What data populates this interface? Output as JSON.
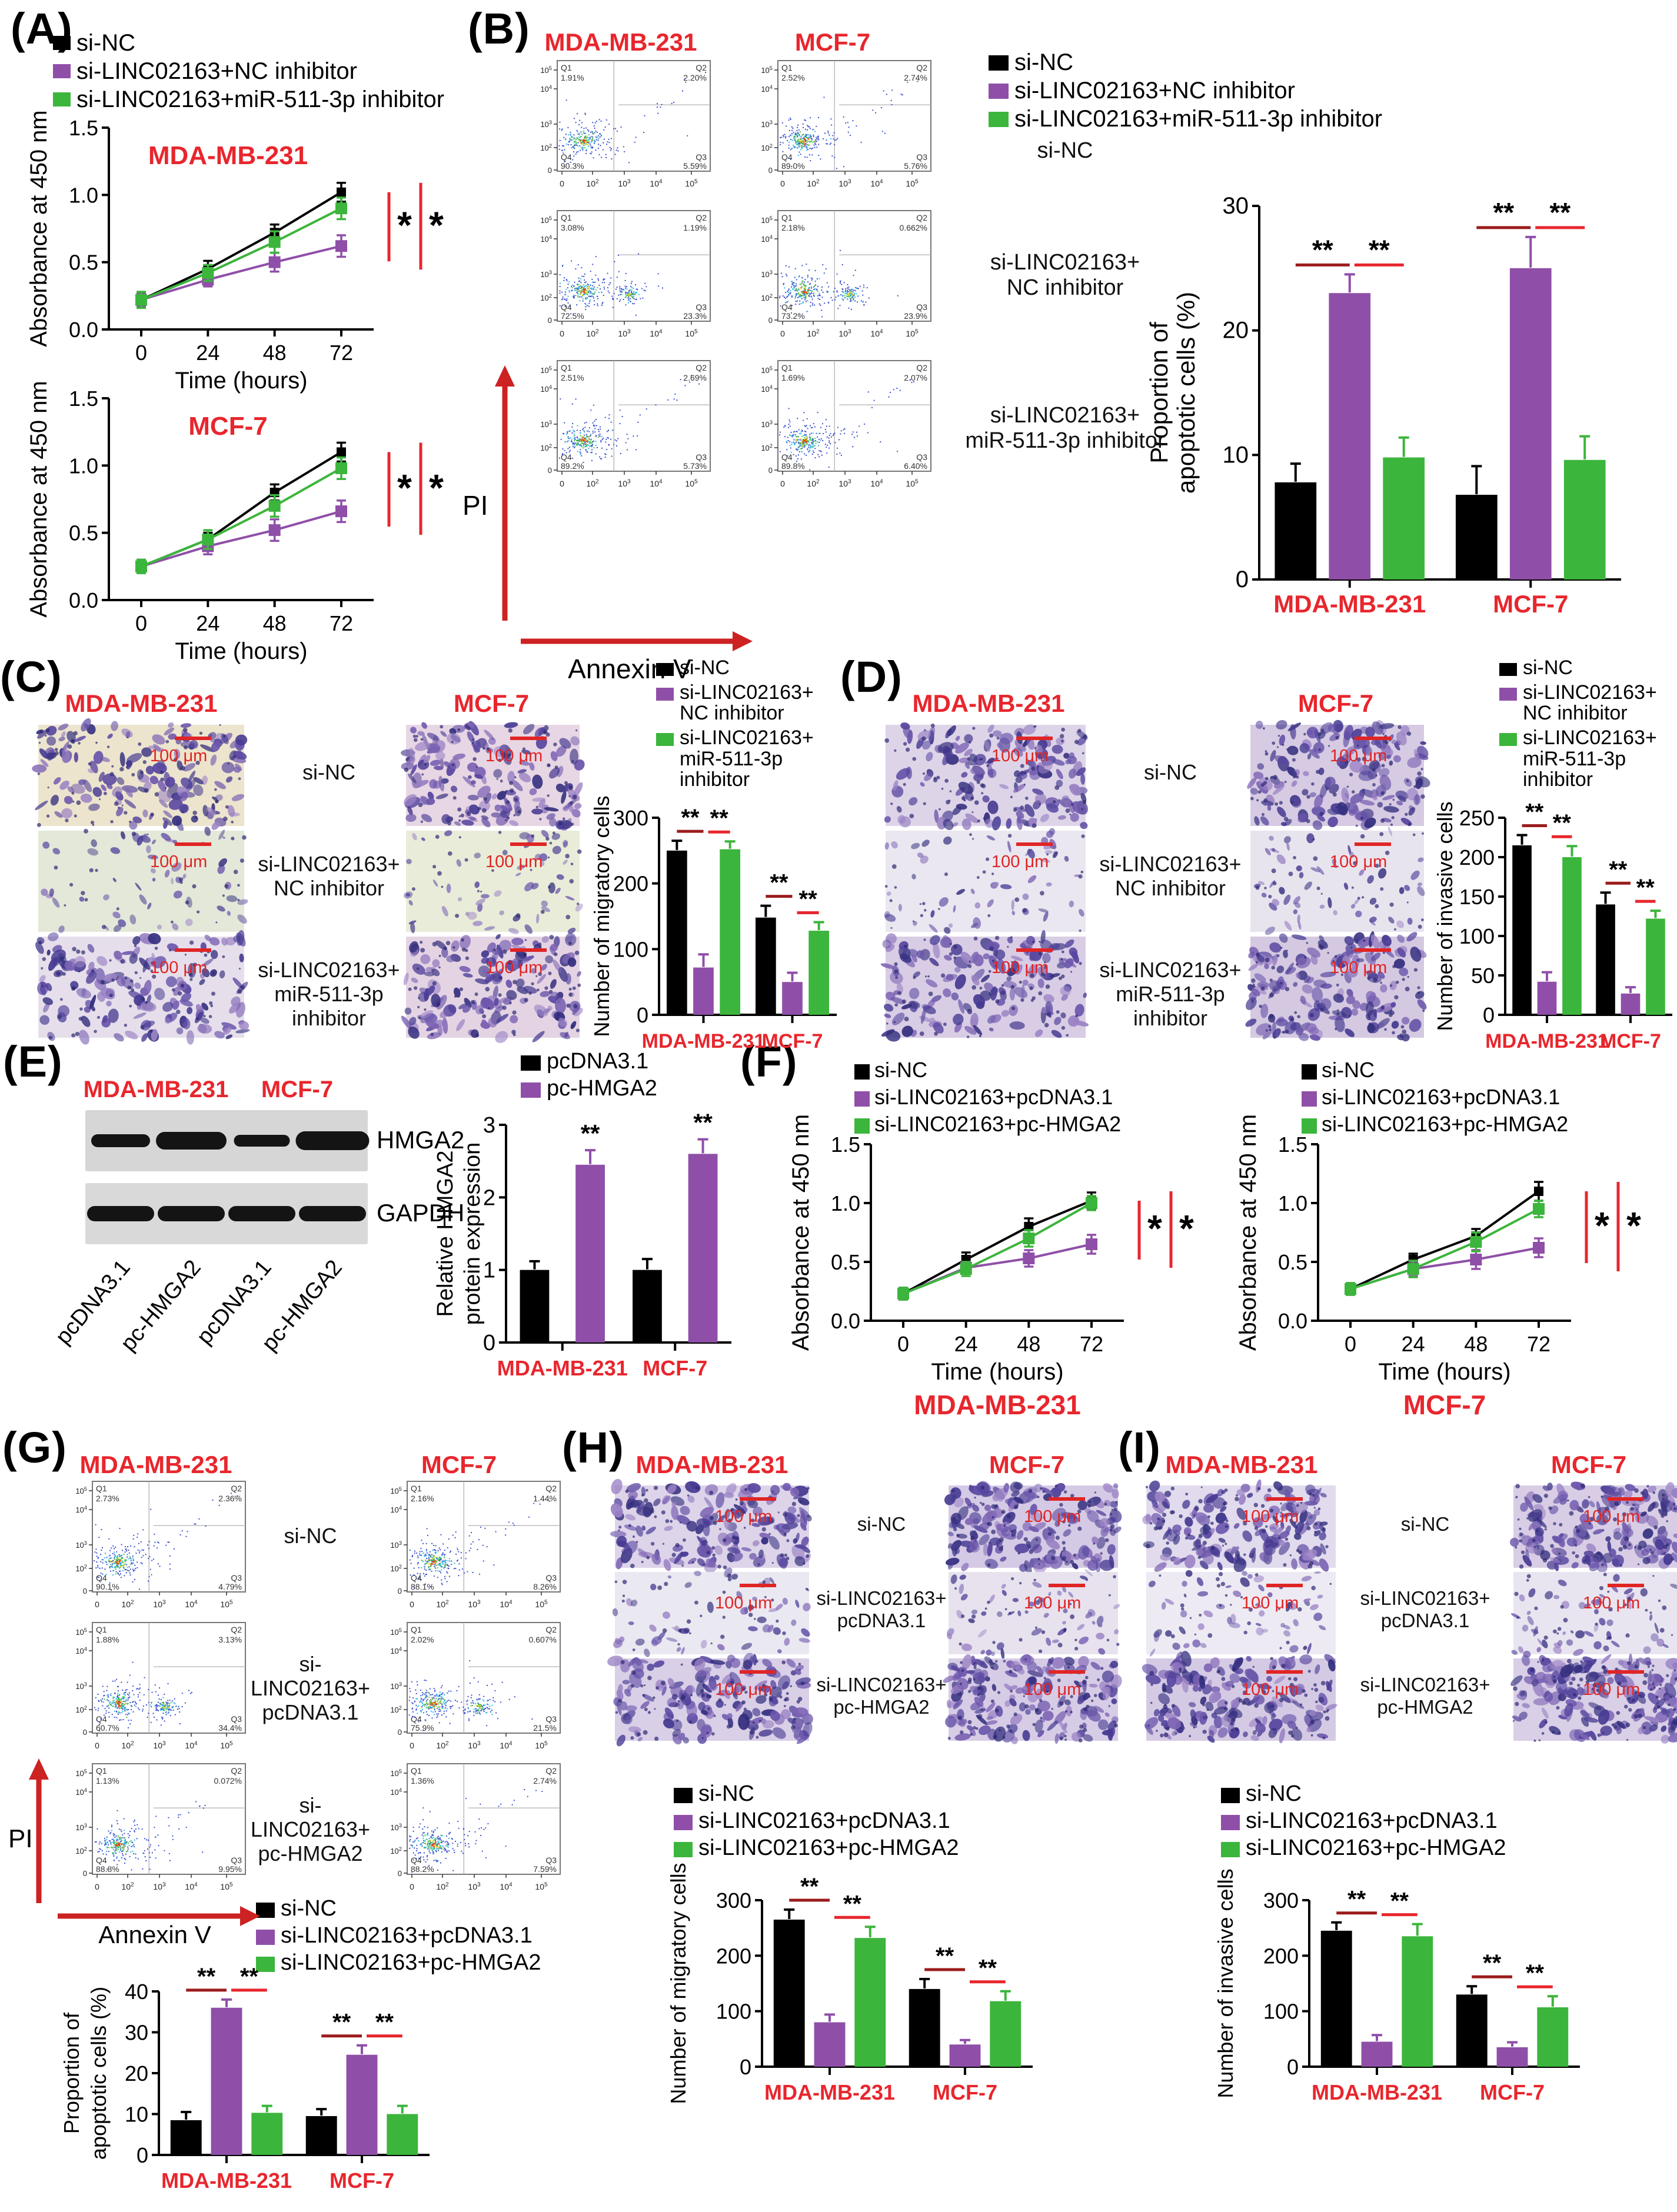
{
  "figure": {
    "panels": {
      "a": "(A)",
      "b": "(B)",
      "c": "(C)",
      "d": "(D)",
      "e": "(E)",
      "f": "(F)",
      "g": "(G)",
      "h": "(H)",
      "i": "(I)"
    }
  },
  "colors": {
    "black": "#000000",
    "purple": "#8f4fa8",
    "green": "#3cb53c",
    "red": "#e8262d",
    "dark_red": "#9b1c1c",
    "arrow_red": "#cc2222",
    "scale_red": "#e02525"
  },
  "cell_lines": [
    "MDA-MB-231",
    "MCF-7"
  ],
  "groups": {
    "inhibitor": {
      "full": [
        "si-NC",
        "si-LINC02163+NC inhibitor",
        "si-LINC02163+miR-511-3p inhibitor"
      ],
      "wrapped": [
        [
          "si-NC"
        ],
        [
          "si-LINC02163+",
          "NC inhibitor"
        ],
        [
          "si-LINC02163+",
          "miR-511-3p inhibitor"
        ]
      ]
    },
    "hmga2": {
      "full": [
        "pcDNA3.1",
        "pc-HMGA2"
      ]
    },
    "pchmga2": {
      "full": [
        "si-NC",
        "si-LINC02163+pcDNA3.1",
        "si-LINC02163+pc-HMGA2"
      ],
      "wrapped": [
        [
          "si-NC"
        ],
        [
          "si-LINC02163+",
          "pcDNA3.1"
        ],
        [
          "si-LINC02163+",
          "pc-HMGA2"
        ]
      ]
    }
  },
  "axis_labels": {
    "absorbance": "Absorbance at 450 nm",
    "time": "Time (hours)",
    "pi": "PI",
    "annexin": "Annexin V",
    "apoptotic": [
      "Proportion of",
      "apoptotic cells (%)"
    ],
    "migratory": "Number of migratory cells",
    "invasive": "Number of invasive cells",
    "hmga2": [
      "Relative HMGA2",
      "protein expression"
    ]
  },
  "scale_bar_label": "100 μm",
  "significance": {
    "double": "**",
    "single": "*"
  },
  "flow_axis": {
    "ticks": [
      "0",
      "10²",
      "10³",
      "10⁴",
      "10⁵"
    ],
    "quadrants": [
      "Q1",
      "Q2",
      "Q3",
      "Q4"
    ]
  },
  "blot": {
    "lanes": [
      "pcDNA3.1",
      "pc-HMGA2",
      "pcDNA3.1",
      "pc-HMGA2"
    ],
    "targets": [
      "HMGA2",
      "GAPDH"
    ]
  },
  "flow_data": {
    "B": [
      {
        "mda": {
          "q1": "1.91%",
          "q2": "2.20%",
          "q3": "5.59%",
          "q4": "90.3%",
          "second": false
        },
        "mcf": {
          "q1": "2.52%",
          "q2": "2.74%",
          "q3": "5.76%",
          "q4": "89.0%",
          "second": false
        }
      },
      {
        "mda": {
          "q1": "3.08%",
          "q2": "1.19%",
          "q3": "23.3%",
          "q4": "72.5%",
          "second": true
        },
        "mcf": {
          "q1": "2.18%",
          "q2": "0.662%",
          "q3": "23.9%",
          "q4": "73.2%",
          "second": true
        }
      },
      {
        "mda": {
          "q1": "2.51%",
          "q2": "2.69%",
          "q3": "5.73%",
          "q4": "89.2%",
          "second": false
        },
        "mcf": {
          "q1": "1.69%",
          "q2": "2.07%",
          "q3": "6.40%",
          "q4": "89.8%",
          "second": false
        }
      }
    ],
    "G": [
      {
        "mda": {
          "q1": "2.73%",
          "q2": "2.36%",
          "q3": "4.79%",
          "q4": "90.1%",
          "second": false
        },
        "mcf": {
          "q1": "2.16%",
          "q2": "1.44%",
          "q3": "8.26%",
          "q4": "88.1%",
          "second": false
        }
      },
      {
        "mda": {
          "q1": "1.88%",
          "q2": "3.13%",
          "q3": "34.4%",
          "q4": "60.7%",
          "second": true
        },
        "mcf": {
          "q1": "2.02%",
          "q2": "0.607%",
          "q3": "21.5%",
          "q4": "75.9%",
          "second": true
        }
      },
      {
        "mda": {
          "q1": "1.13%",
          "q2": "0.072%",
          "q3": "9.95%",
          "q4": "88.8%",
          "second": false
        },
        "mcf": {
          "q1": "1.36%",
          "q2": "2.74%",
          "q3": "7.59%",
          "q4": "88.2%",
          "second": false
        }
      }
    ]
  },
  "micrographs": {
    "C": {
      "mda": [
        {
          "density": "high",
          "bg": "#ece4cd"
        },
        {
          "density": "low",
          "bg": "#e3e8d9"
        },
        {
          "density": "high",
          "bg": "#e6dfeb"
        }
      ],
      "mcf": [
        {
          "density": "high",
          "bg": "#e7d6e3"
        },
        {
          "density": "low",
          "bg": "#e9ecd9"
        },
        {
          "density": "high",
          "bg": "#e4d4e3"
        }
      ]
    },
    "D": {
      "mda": [
        {
          "density": "high",
          "bg": "#ded4e8"
        },
        {
          "density": "low",
          "bg": "#eae7f0"
        },
        {
          "density": "high",
          "bg": "#d8cde4"
        }
      ],
      "mcf": [
        {
          "density": "high",
          "bg": "#d6cbe2"
        },
        {
          "density": "low",
          "bg": "#e8e4ee"
        },
        {
          "density": "high",
          "bg": "#d5c9e1"
        }
      ]
    },
    "H": {
      "mda": [
        {
          "density": "high",
          "bg": "#ddd4e9"
        },
        {
          "density": "low",
          "bg": "#eae8f1"
        },
        {
          "density": "high",
          "bg": "#d9cfe7"
        }
      ],
      "mcf": [
        {
          "density": "high",
          "bg": "#d5cae5"
        },
        {
          "density": "low",
          "bg": "#e7e2ee"
        },
        {
          "density": "high",
          "bg": "#d7cce6"
        }
      ]
    },
    "I": {
      "mda": [
        {
          "density": "high",
          "bg": "#e1dbed"
        },
        {
          "density": "low",
          "bg": "#edeaf3"
        },
        {
          "density": "high",
          "bg": "#d5cae4"
        }
      ],
      "mcf": [
        {
          "density": "high",
          "bg": "#d8cde5"
        },
        {
          "density": "low",
          "bg": "#e9e5f0"
        },
        {
          "density": "high",
          "bg": "#d9cfe6"
        }
      ]
    }
  },
  "chart_data": [
    {
      "id": "A1",
      "type": "line",
      "title": "MDA-MB-231",
      "x": [
        0,
        24,
        48,
        72
      ],
      "xlabel": "Time (hours)",
      "ylabel": "Absorbance at 450 nm",
      "ylim": [
        0,
        1.5
      ],
      "yticks": [
        0,
        0.5,
        1,
        1.5
      ],
      "ytick_labels": [
        "0.0",
        "0.5",
        "1.0",
        "1.5"
      ],
      "legend": "inhibitor",
      "sig": "two-stars-lines",
      "series": [
        {
          "name": "si-NC",
          "color": "black",
          "values": [
            0.22,
            0.45,
            0.72,
            1.02
          ],
          "errors": [
            0.04,
            0.06,
            0.06,
            0.07
          ]
        },
        {
          "name": "si-LINC02163+NC inhibitor",
          "color": "purple",
          "values": [
            0.22,
            0.37,
            0.5,
            0.62
          ],
          "errors": [
            0.05,
            0.05,
            0.07,
            0.08
          ]
        },
        {
          "name": "si-LINC02163+miR-511-3p inhibitor",
          "color": "green",
          "values": [
            0.22,
            0.42,
            0.65,
            0.9
          ],
          "errors": [
            0.06,
            0.06,
            0.08,
            0.08
          ]
        }
      ]
    },
    {
      "id": "A2",
      "type": "line",
      "title": "MCF-7",
      "x": [
        0,
        24,
        48,
        72
      ],
      "xlabel": "Time (hours)",
      "ylabel": "Absorbance at 450 nm",
      "ylim": [
        0,
        1.5
      ],
      "yticks": [
        0,
        0.5,
        1,
        1.5
      ],
      "ytick_labels": [
        "0.0",
        "0.5",
        "1.0",
        "1.5"
      ],
      "legend": "inhibitor",
      "sig": "two-stars-lines",
      "series": [
        {
          "name": "si-NC",
          "color": "black",
          "values": [
            0.25,
            0.45,
            0.8,
            1.1
          ],
          "errors": [
            0.04,
            0.05,
            0.06,
            0.07
          ]
        },
        {
          "name": "si-LINC02163+NC inhibitor",
          "color": "purple",
          "values": [
            0.25,
            0.4,
            0.52,
            0.66
          ],
          "errors": [
            0.05,
            0.06,
            0.08,
            0.08
          ]
        },
        {
          "name": "si-LINC02163+miR-511-3p inhibitor",
          "color": "green",
          "values": [
            0.25,
            0.45,
            0.7,
            0.98
          ],
          "errors": [
            0.05,
            0.07,
            0.08,
            0.08
          ]
        }
      ]
    },
    {
      "id": "B",
      "type": "bar",
      "ylabel": [
        "Proportion of",
        "apoptotic cells (%)"
      ],
      "ylim": [
        0,
        30
      ],
      "yticks": [
        0,
        10,
        20,
        30
      ],
      "categories": [
        "MDA-MB-231",
        "MCF-7"
      ],
      "legend": "inhibitor",
      "sig": "pairs",
      "series": [
        {
          "name": "si-NC",
          "color": "black",
          "values": [
            7.8,
            6.8
          ],
          "errors": [
            1.5,
            2.3
          ]
        },
        {
          "name": "si-LINC02163+NC inhibitor",
          "color": "purple",
          "values": [
            23,
            25
          ],
          "errors": [
            1.5,
            2.5
          ]
        },
        {
          "name": "si-LINC02163+miR-511-3p inhibitor",
          "color": "green",
          "values": [
            9.8,
            9.6
          ],
          "errors": [
            1.6,
            1.9
          ]
        }
      ]
    },
    {
      "id": "C",
      "type": "bar",
      "ylabel": "Number of migratory cells",
      "ylim": [
        0,
        300
      ],
      "yticks": [
        0,
        100,
        200,
        300
      ],
      "categories": [
        "MDA-MB-231",
        "MCF-7"
      ],
      "legend": "inhibitor",
      "sig": "pairs",
      "series": [
        {
          "name": "si-NC",
          "color": "black",
          "values": [
            250,
            148
          ],
          "errors": [
            15,
            18
          ]
        },
        {
          "name": "si-LINC02163+NC inhibitor",
          "color": "purple",
          "values": [
            72,
            50
          ],
          "errors": [
            20,
            14
          ]
        },
        {
          "name": "si-LINC02163+miR-511-3p inhibitor",
          "color": "green",
          "values": [
            252,
            128
          ],
          "errors": [
            12,
            13
          ]
        }
      ]
    },
    {
      "id": "D",
      "type": "bar",
      "ylabel": "Number of invasive cells",
      "ylim": [
        0,
        250
      ],
      "yticks": [
        0,
        50,
        100,
        150,
        200,
        250
      ],
      "categories": [
        "MDA-MB-231",
        "MCF-7"
      ],
      "legend": "inhibitor",
      "sig": "pairs",
      "series": [
        {
          "name": "si-NC",
          "color": "black",
          "values": [
            215,
            140
          ],
          "errors": [
            13,
            15
          ]
        },
        {
          "name": "si-LINC02163+NC inhibitor",
          "color": "purple",
          "values": [
            42,
            27
          ],
          "errors": [
            12,
            8
          ]
        },
        {
          "name": "si-LINC02163+miR-511-3p inhibitor",
          "color": "green",
          "values": [
            200,
            122
          ],
          "errors": [
            14,
            10
          ]
        }
      ]
    },
    {
      "id": "E",
      "type": "bar",
      "ylabel": [
        "Relative HMGA2",
        "protein expression"
      ],
      "ylim": [
        0,
        3
      ],
      "yticks": [
        0,
        1,
        2,
        3
      ],
      "categories": [
        "MDA-MB-231",
        "MCF-7"
      ],
      "legend": "hmga2",
      "sig": "stars",
      "series": [
        {
          "name": "pcDNA3.1",
          "color": "black",
          "values": [
            1.0,
            1.0
          ],
          "errors": [
            0.12,
            0.15
          ]
        },
        {
          "name": "pc-HMGA2",
          "color": "purple",
          "values": [
            2.45,
            2.6
          ],
          "errors": [
            0.2,
            0.2
          ]
        }
      ]
    },
    {
      "id": "F1",
      "type": "line",
      "cell_label": "MDA-MB-231",
      "x": [
        0,
        24,
        48,
        72
      ],
      "xlabel": "Time (hours)",
      "ylabel": "Absorbance at 450 nm",
      "ylim": [
        0,
        1.5
      ],
      "yticks": [
        0,
        0.5,
        1,
        1.5
      ],
      "ytick_labels": [
        "0.0",
        "0.5",
        "1.0",
        "1.5"
      ],
      "legend": "pchmga2",
      "sig": "two-stars-lines",
      "series": [
        {
          "name": "si-NC",
          "color": "black",
          "values": [
            0.23,
            0.52,
            0.8,
            1.02
          ],
          "errors": [
            0.05,
            0.06,
            0.07,
            0.07
          ]
        },
        {
          "name": "si-LINC02163+pcDNA3.1",
          "color": "purple",
          "values": [
            0.23,
            0.45,
            0.53,
            0.65
          ],
          "errors": [
            0.05,
            0.05,
            0.07,
            0.08
          ]
        },
        {
          "name": "si-LINC02163+pc-HMGA2",
          "color": "green",
          "values": [
            0.23,
            0.44,
            0.7,
            1.0
          ],
          "errors": [
            0.05,
            0.06,
            0.07,
            0.06
          ]
        }
      ]
    },
    {
      "id": "F2",
      "type": "line",
      "cell_label": "MCF-7",
      "x": [
        0,
        24,
        48,
        72
      ],
      "xlabel": "Time (hours)",
      "ylabel": "Absorbance at 450 nm",
      "ylim": [
        0,
        1.5
      ],
      "yticks": [
        0,
        0.5,
        1,
        1.5
      ],
      "ytick_labels": [
        "0.0",
        "0.5",
        "1.0",
        "1.5"
      ],
      "legend": "pchmga2",
      "sig": "two-stars-lines",
      "series": [
        {
          "name": "si-NC",
          "color": "black",
          "values": [
            0.27,
            0.52,
            0.72,
            1.1
          ],
          "errors": [
            0.04,
            0.05,
            0.06,
            0.08
          ]
        },
        {
          "name": "si-LINC02163+pcDNA3.1",
          "color": "purple",
          "values": [
            0.27,
            0.44,
            0.52,
            0.62
          ],
          "errors": [
            0.05,
            0.06,
            0.08,
            0.08
          ]
        },
        {
          "name": "si-LINC02163+pc-HMGA2",
          "color": "green",
          "values": [
            0.27,
            0.44,
            0.67,
            0.95
          ],
          "errors": [
            0.05,
            0.07,
            0.08,
            0.07
          ]
        }
      ]
    },
    {
      "id": "G",
      "type": "bar",
      "ylabel": [
        "Proportion of",
        "apoptotic cells (%)"
      ],
      "ylim": [
        0,
        40
      ],
      "yticks": [
        0,
        10,
        20,
        30,
        40
      ],
      "categories": [
        "MDA-MB-231",
        "MCF-7"
      ],
      "legend": "pchmga2",
      "sig": "pairs",
      "series": [
        {
          "name": "si-NC",
          "color": "black",
          "values": [
            8.5,
            9.5
          ],
          "errors": [
            2,
            1.7
          ]
        },
        {
          "name": "si-LINC02163+pcDNA3.1",
          "color": "purple",
          "values": [
            36,
            24.5
          ],
          "errors": [
            2,
            2.3
          ]
        },
        {
          "name": "si-LINC02163+pc-HMGA2",
          "color": "green",
          "values": [
            10.3,
            10
          ],
          "errors": [
            1.7,
            2
          ]
        }
      ]
    },
    {
      "id": "H",
      "type": "bar",
      "ylabel": "Number of migratory cells",
      "ylim": [
        0,
        300
      ],
      "yticks": [
        0,
        100,
        200,
        300
      ],
      "categories": [
        "MDA-MB-231",
        "MCF-7"
      ],
      "legend": "pchmga2",
      "sig": "pairs",
      "series": [
        {
          "name": "si-NC",
          "color": "black",
          "values": [
            265,
            140
          ],
          "errors": [
            18,
            18
          ]
        },
        {
          "name": "si-LINC02163+pcDNA3.1",
          "color": "purple",
          "values": [
            80,
            40
          ],
          "errors": [
            14,
            8
          ]
        },
        {
          "name": "si-LINC02163+pc-HMGA2",
          "color": "green",
          "values": [
            232,
            118
          ],
          "errors": [
            20,
            18
          ]
        }
      ]
    },
    {
      "id": "I",
      "type": "bar",
      "ylabel": "Number of invasive cells",
      "ylim": [
        0,
        300
      ],
      "yticks": [
        0,
        100,
        200,
        300
      ],
      "categories": [
        "MDA-MB-231",
        "MCF-7"
      ],
      "legend": "pchmga2",
      "sig": "pairs",
      "series": [
        {
          "name": "si-NC",
          "color": "black",
          "values": [
            245,
            130
          ],
          "errors": [
            15,
            15
          ]
        },
        {
          "name": "si-LINC02163+pcDNA3.1",
          "color": "purple",
          "values": [
            45,
            35
          ],
          "errors": [
            12,
            9
          ]
        },
        {
          "name": "si-LINC02163+pc-HMGA2",
          "color": "green",
          "values": [
            235,
            107
          ],
          "errors": [
            22,
            20
          ]
        }
      ]
    }
  ]
}
